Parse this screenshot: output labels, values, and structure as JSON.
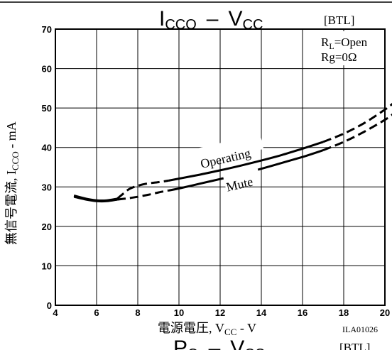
{
  "chart_data": {
    "type": "line",
    "title": {
      "main": "I",
      "sub": "CCO",
      "dash": "–",
      "vc_main": "V",
      "vc_sub": "CC"
    },
    "mode_tag": "[BTL]",
    "conditions": [
      {
        "main": "R",
        "sub": "L",
        "rest": "=Open"
      },
      {
        "main": "Rg=0Ω",
        "sub": "",
        "rest": ""
      }
    ],
    "ylabel": {
      "prefix": "無信号電流, I",
      "sub": "CCO",
      "suffix": " - mA"
    },
    "xlabel": {
      "prefix": "電源電圧, V",
      "sub": "CC",
      "suffix": " - V"
    },
    "figure_id": "ILA01026",
    "xlim": [
      4,
      20
    ],
    "ylim": [
      0,
      70
    ],
    "x_ticks": [
      "4",
      "6",
      "8",
      "10",
      "12",
      "14",
      "16",
      "18",
      "20"
    ],
    "y_ticks": [
      "0",
      "10",
      "20",
      "30",
      "40",
      "50",
      "60",
      "70"
    ],
    "grid": true,
    "series": [
      {
        "name": "Operating",
        "solid": [
          [
            4.9,
            27.8
          ],
          [
            5.5,
            27.0
          ],
          [
            6.0,
            26.6
          ],
          [
            6.5,
            26.6
          ],
          [
            7.0,
            27.0
          ]
        ],
        "dashed_1": [
          [
            7.0,
            27.0
          ],
          [
            7.3,
            28.3
          ],
          [
            7.6,
            29.5
          ],
          [
            8.0,
            30.3
          ],
          [
            8.5,
            30.9
          ],
          [
            9.0,
            31.2
          ],
          [
            9.5,
            31.6
          ]
        ],
        "solid_2": [
          [
            9.5,
            31.6
          ],
          [
            10,
            32.1
          ],
          [
            11,
            33.1
          ],
          [
            12,
            34.2
          ],
          [
            13,
            35.4
          ],
          [
            14,
            36.7
          ],
          [
            15,
            38.1
          ],
          [
            16,
            39.7
          ],
          [
            17,
            41.4
          ]
        ],
        "dashed_2": [
          [
            17,
            41.4
          ],
          [
            18,
            43.5
          ],
          [
            19,
            46.2
          ],
          [
            20,
            49.6
          ],
          [
            20.4,
            51.2
          ]
        ],
        "label": "Operating"
      },
      {
        "name": "Mute",
        "solid": [
          [
            4.9,
            27.5
          ],
          [
            5.5,
            26.8
          ],
          [
            6.0,
            26.4
          ],
          [
            6.5,
            26.4
          ],
          [
            7.0,
            26.8
          ]
        ],
        "dashed_1": [
          [
            7.0,
            26.8
          ],
          [
            7.5,
            27.1
          ],
          [
            8.0,
            27.5
          ],
          [
            8.5,
            28.0
          ],
          [
            9.0,
            28.6
          ],
          [
            9.5,
            29.1
          ]
        ],
        "solid_2": [
          [
            9.5,
            29.1
          ],
          [
            10,
            29.6
          ],
          [
            11,
            30.8
          ],
          [
            12,
            32.0
          ],
          [
            13,
            33.2
          ],
          [
            14,
            34.6
          ],
          [
            15,
            36.1
          ],
          [
            16,
            37.6
          ],
          [
            17,
            39.3
          ]
        ],
        "dashed_2": [
          [
            17,
            39.3
          ],
          [
            18,
            41.4
          ],
          [
            19,
            44.0
          ],
          [
            20,
            47.0
          ],
          [
            20.4,
            48.5
          ]
        ],
        "label": "Mute"
      }
    ],
    "next_title_partial": {
      "main": "P",
      "sub": "O",
      "dash": "–",
      "vc_main": "V",
      "vc_sub": "CC",
      "tag": "[BTL]"
    }
  }
}
